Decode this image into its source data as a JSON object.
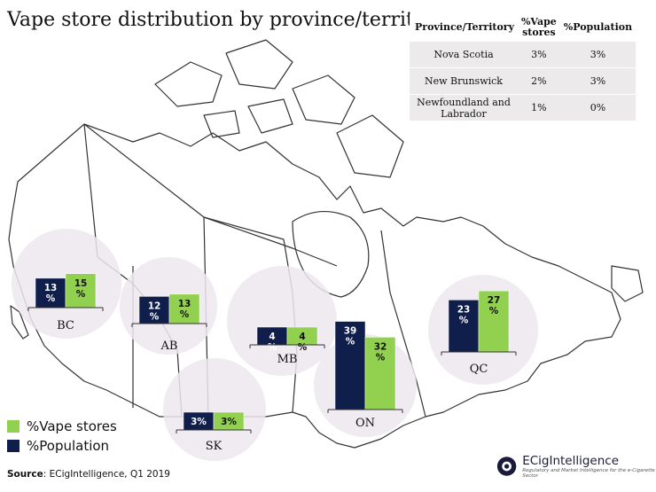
{
  "title": "Vape store distribution by province/territory",
  "table": {
    "headers": [
      "Province/Territory",
      "%Vape stores",
      "%Population"
    ],
    "rows": [
      [
        "Nova Scotia",
        "3%",
        "3%"
      ],
      [
        "New Brunswick",
        "2%",
        "3%"
      ],
      [
        "Newfoundland and Labrador",
        "1%",
        "0%"
      ]
    ]
  },
  "legend": [
    {
      "label": "%Vape stores",
      "color": "#92d050"
    },
    {
      "label": "%Population",
      "color": "#0f1e4a"
    }
  ],
  "source": {
    "label": "Source",
    "text": ": ECigIntelligence, Q1 2019"
  },
  "brand": {
    "name": "ECigIntelligence",
    "tagline": "Regulatory and Market Intelligence for the e-Cigarette Sector"
  },
  "colors": {
    "vape": "#92d050",
    "population": "#0f1e4a",
    "bubble": "#ece8ef",
    "map_line": "#333333"
  },
  "chart_data": {
    "type": "bar",
    "title": "Vape store distribution by province/territory",
    "categories": [
      "BC",
      "AB",
      "SK",
      "MB",
      "ON",
      "QC"
    ],
    "series": [
      {
        "name": "%Population",
        "values": [
          13,
          12,
          3,
          4,
          39,
          23
        ]
      },
      {
        "name": "%Vape stores",
        "values": [
          15,
          13,
          3,
          4,
          32,
          27
        ]
      }
    ],
    "value_labels": {
      "%Population": [
        "13 %",
        "12 %",
        "3%",
        "4 %",
        "39 %",
        "23 %"
      ],
      "%Vape stores": [
        "15 %",
        "13 %",
        "3%",
        "4 %",
        "32 %",
        "27 %"
      ]
    },
    "legend_position": "bottom-left"
  }
}
